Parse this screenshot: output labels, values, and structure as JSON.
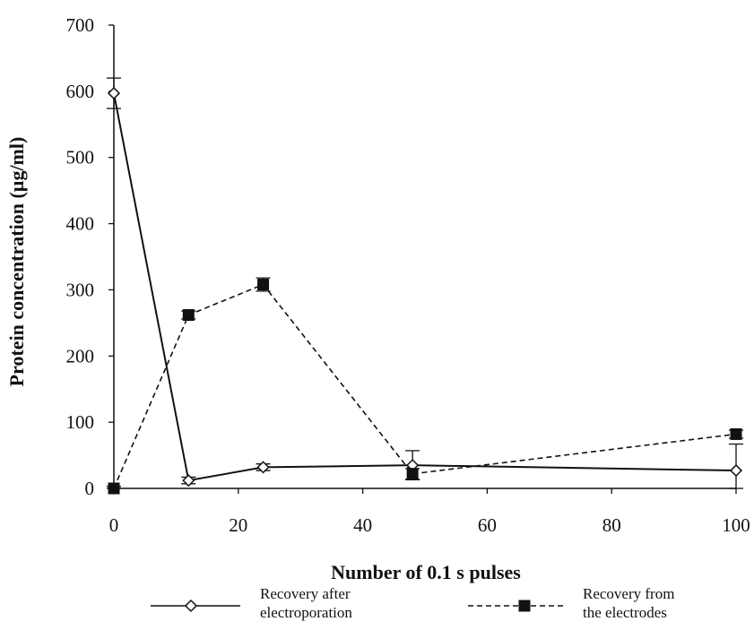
{
  "chart_data": {
    "type": "line",
    "title": "",
    "xlabel": "Number of 0.1 s pulses",
    "ylabel": "Protein concentration (µg/ml)",
    "xlim": [
      0,
      100
    ],
    "ylim": [
      0,
      700
    ],
    "xticks": [
      0,
      20,
      40,
      60,
      80,
      100
    ],
    "yticks": [
      0,
      100,
      200,
      300,
      400,
      500,
      600,
      700
    ],
    "grid": false,
    "legend_position": "bottom",
    "series": [
      {
        "name": "Recovery after electroporation",
        "legend_lines": [
          "Recovery after",
          "electroporation"
        ],
        "style": "solid",
        "marker": "open-diamond",
        "color": "#111111",
        "x": [
          0,
          12,
          24,
          48,
          100
        ],
        "y": [
          597,
          12,
          32,
          35,
          27
        ],
        "err": [
          23,
          5,
          5,
          22,
          40
        ]
      },
      {
        "name": "Recovery from the electrodes",
        "legend_lines": [
          "Recovery from",
          "the electrodes"
        ],
        "style": "dashed",
        "marker": "filled-square",
        "color": "#111111",
        "x": [
          0,
          12,
          24,
          48,
          100
        ],
        "y": [
          0,
          262,
          308,
          22,
          82
        ],
        "err": [
          3,
          6,
          10,
          8,
          6
        ]
      }
    ]
  }
}
